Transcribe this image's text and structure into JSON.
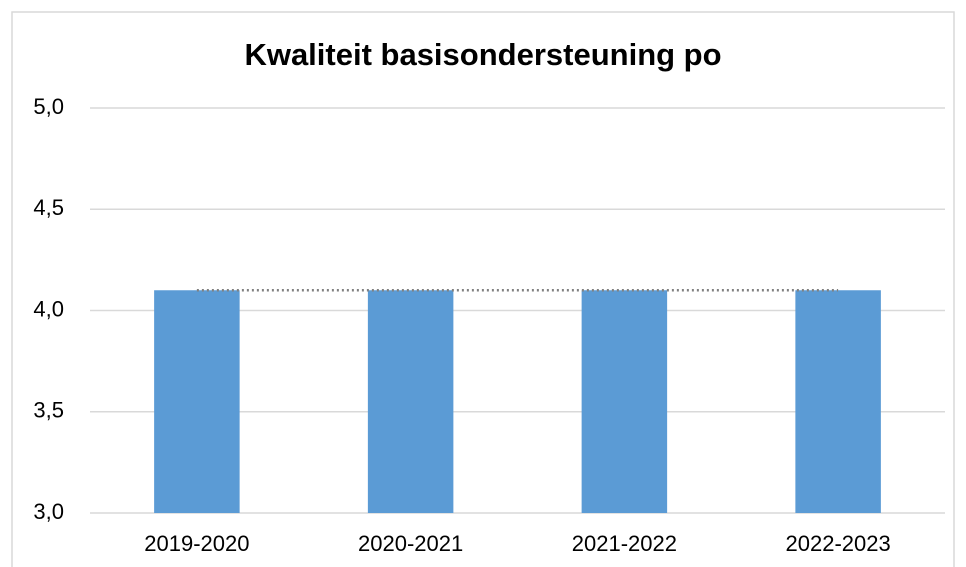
{
  "chart_data": {
    "type": "bar",
    "title": "Kwaliteit basisondersteuning po",
    "categories": [
      "2019-2020",
      "2020-2021",
      "2021-2022",
      "2022-2023"
    ],
    "values": [
      4.1,
      4.1,
      4.1,
      4.1
    ],
    "color": "#5b9bd5",
    "ylim": [
      3,
      5
    ],
    "yticks": [
      {
        "value": 3,
        "label": "3,0"
      },
      {
        "value": 3.5,
        "label": "3,5"
      },
      {
        "value": 4,
        "label": "4,0"
      },
      {
        "value": 4.5,
        "label": "4,5"
      },
      {
        "value": 5,
        "label": "5,0"
      }
    ],
    "grid": true,
    "trendline_color": "#808080"
  }
}
